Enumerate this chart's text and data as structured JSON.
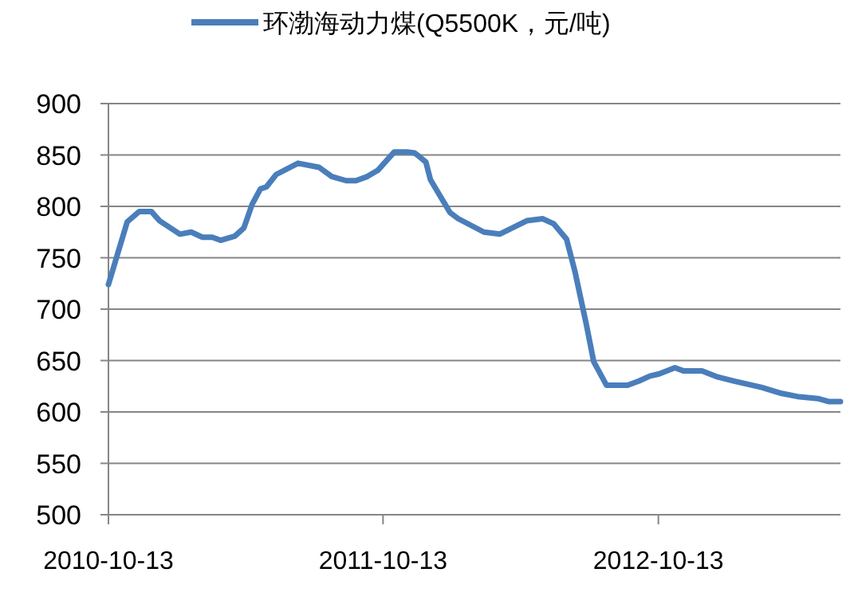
{
  "chart_data": {
    "type": "line",
    "legend": "top",
    "grid": "y",
    "marker": "none",
    "line_style": "solid",
    "x": [
      "2010-10-13",
      "2010-11-07",
      "2010-11-23",
      "2010-12-09",
      "2010-12-20",
      "2011-01-16",
      "2011-01-31",
      "2011-02-15",
      "2011-02-28",
      "2011-03-11",
      "2011-03-30",
      "2011-04-11",
      "2011-04-22",
      "2011-05-03",
      "2011-05-11",
      "2011-05-24",
      "2011-06-22",
      "2011-07-20",
      "2011-08-06",
      "2011-08-25",
      "2011-09-07",
      "2011-09-22",
      "2011-10-06",
      "2011-10-28",
      "2011-11-14",
      "2011-11-24",
      "2011-12-01",
      "2011-12-09",
      "2011-12-15",
      "2012-01-10",
      "2012-01-21",
      "2012-02-24",
      "2012-03-16",
      "2012-04-21",
      "2012-05-12",
      "2012-05-27",
      "2012-06-13",
      "2012-06-24",
      "2012-07-09",
      "2012-07-19",
      "2012-08-05",
      "2012-09-02",
      "2012-09-17",
      "2012-10-02",
      "2012-10-14",
      "2012-11-04",
      "2012-11-15",
      "2012-12-10",
      "2012-12-31",
      "2013-01-22",
      "2013-02-27",
      "2013-03-26",
      "2013-04-16",
      "2013-05-13",
      "2013-05-28",
      "2013-06-12"
    ],
    "series": [
      {
        "name": "环渤海动力煤(Q5500K，元/吨)",
        "color": "#4a7ebb",
        "values": [
          724,
          785,
          795,
          795,
          786,
          773,
          775,
          770,
          770,
          767,
          771,
          779,
          802,
          817,
          819,
          831,
          842,
          838,
          829,
          825,
          825,
          829,
          835,
          853,
          853,
          852,
          848,
          843,
          826,
          794,
          788,
          775,
          773,
          786,
          788,
          783,
          768,
          737,
          686,
          649,
          626,
          626,
          630,
          635,
          637,
          643,
          640,
          640,
          634,
          630,
          624,
          618,
          615,
          613,
          610,
          610
        ]
      }
    ],
    "xlim": [
      "2010-10-13",
      "2013-06-12"
    ],
    "xticks": [
      {
        "value": "2010-10-13",
        "label": "2010-10-13"
      },
      {
        "value": "2011-10-13",
        "label": "2011-10-13"
      },
      {
        "value": "2012-10-13",
        "label": "2012-10-13"
      }
    ],
    "ylim": [
      500,
      900
    ],
    "yticks": [
      500,
      550,
      600,
      650,
      700,
      750,
      800,
      850,
      900
    ]
  }
}
